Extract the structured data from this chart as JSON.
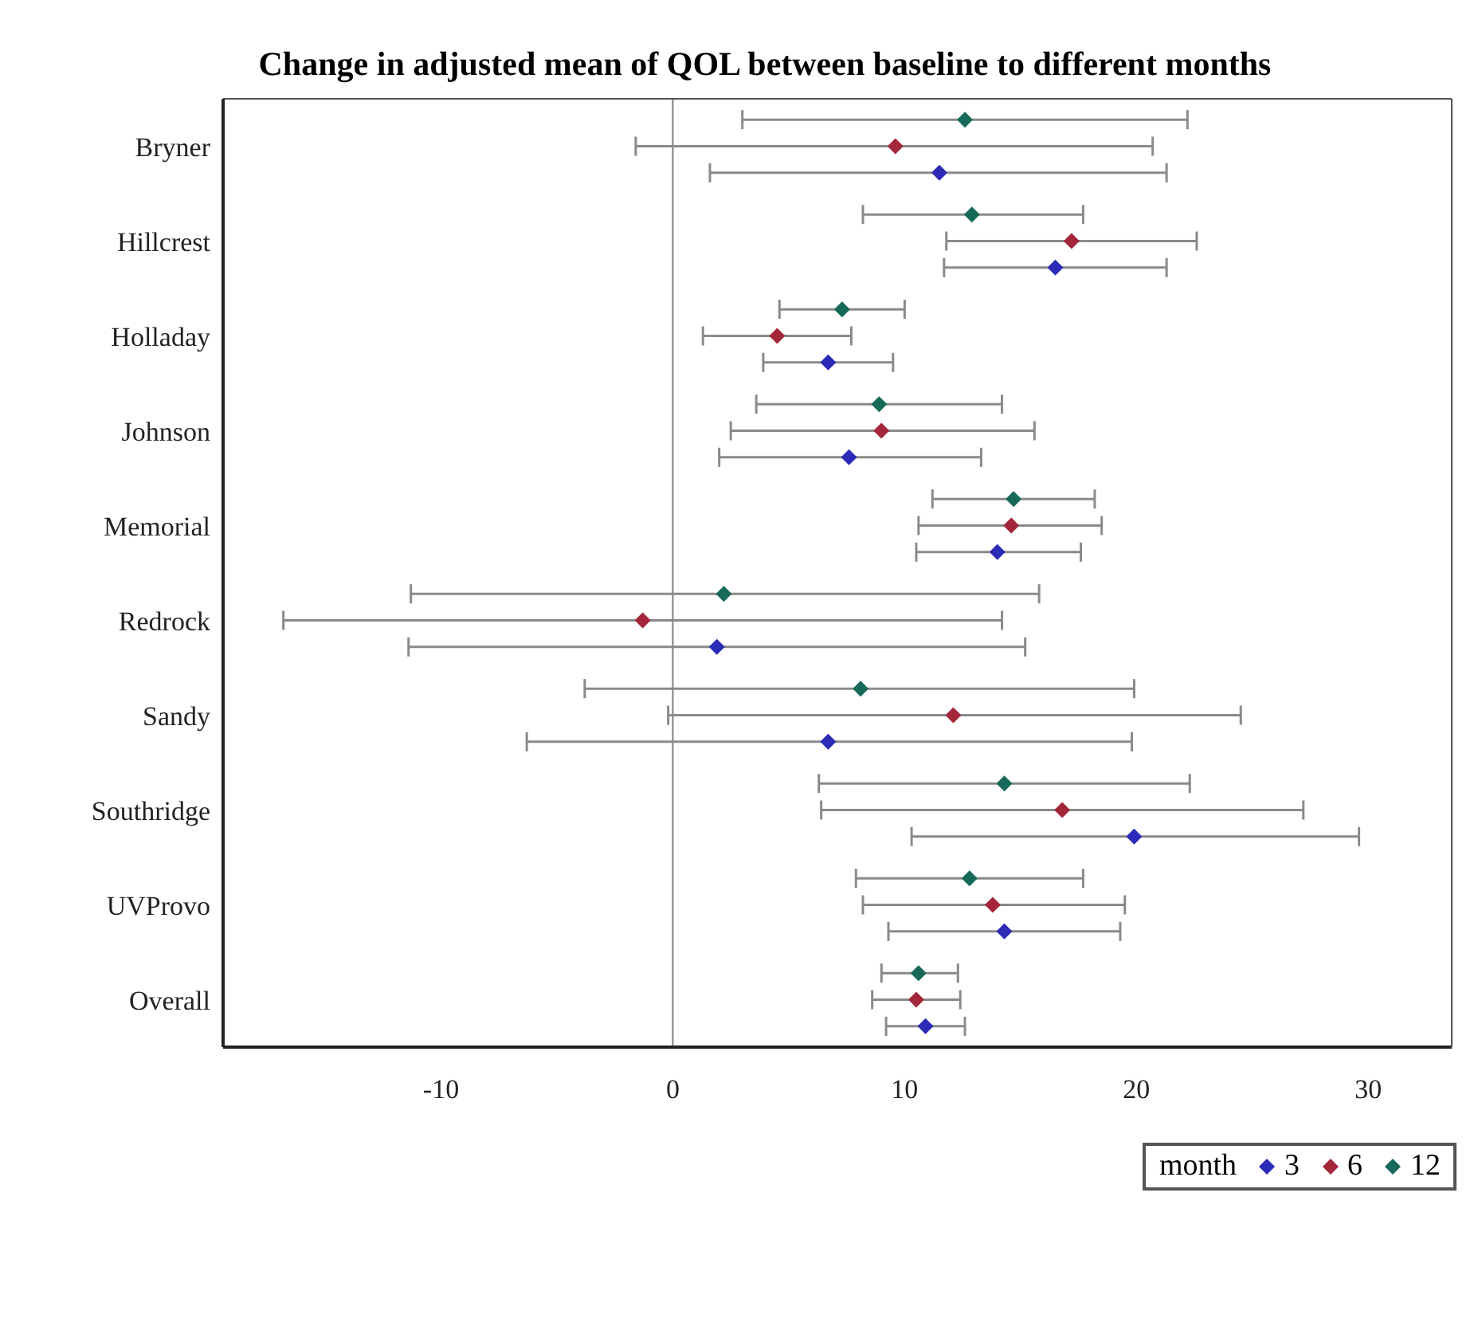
{
  "chart_data": {
    "type": "scatter",
    "orientation": "horizontal",
    "title": "Change in adjusted mean of QOL between baseline to different months",
    "categories": [
      "Bryner",
      "Hillcrest",
      "Holladay",
      "Johnson",
      "Memorial",
      "Redrock",
      "Sandy",
      "Southridge",
      "UVProvo",
      "Overall"
    ],
    "legend_title": "month",
    "legend": "bottom right",
    "marker": "diamond",
    "xlim": [
      -19.4,
      33.6
    ],
    "xticks": [
      -10,
      0,
      10,
      20,
      30
    ],
    "ref_lines": [
      {
        "axis": "x",
        "value": 0,
        "color": "#808080"
      }
    ],
    "series": [
      {
        "name": "3",
        "color": "#2b2bb8",
        "values": [
          11.5,
          16.5,
          6.7,
          7.6,
          14.0,
          1.9,
          6.7,
          19.9,
          14.3,
          10.9
        ],
        "errors": [
          [
            1.6,
            21.3
          ],
          [
            11.7,
            21.3
          ],
          [
            3.9,
            9.5
          ],
          [
            2.0,
            13.3
          ],
          [
            10.5,
            17.6
          ],
          [
            -11.4,
            15.2
          ],
          [
            -6.3,
            19.8
          ],
          [
            10.3,
            29.6
          ],
          [
            9.3,
            19.3
          ],
          [
            9.2,
            12.6
          ]
        ]
      },
      {
        "name": "6",
        "color": "#a3263a",
        "values": [
          9.6,
          17.2,
          4.5,
          9.0,
          14.6,
          -1.3,
          12.1,
          16.8,
          13.8,
          10.5
        ],
        "errors": [
          [
            -1.6,
            20.7
          ],
          [
            11.8,
            22.6
          ],
          [
            1.3,
            7.7
          ],
          [
            2.5,
            15.6
          ],
          [
            10.6,
            18.5
          ],
          [
            -16.8,
            14.2
          ],
          [
            -0.2,
            24.5
          ],
          [
            6.4,
            27.2
          ],
          [
            8.2,
            19.5
          ],
          [
            8.6,
            12.4
          ]
        ]
      },
      {
        "name": "12",
        "color": "#17695a",
        "values": [
          12.6,
          12.9,
          7.3,
          8.9,
          14.7,
          2.2,
          8.1,
          14.3,
          12.8,
          10.6
        ],
        "errors": [
          [
            3.0,
            22.2
          ],
          [
            8.2,
            17.7
          ],
          [
            4.6,
            10.0
          ],
          [
            3.6,
            14.2
          ],
          [
            11.2,
            18.2
          ],
          [
            -11.3,
            15.8
          ],
          [
            -3.8,
            19.9
          ],
          [
            6.3,
            22.3
          ],
          [
            7.9,
            17.7
          ],
          [
            9.0,
            12.3
          ]
        ]
      }
    ]
  }
}
